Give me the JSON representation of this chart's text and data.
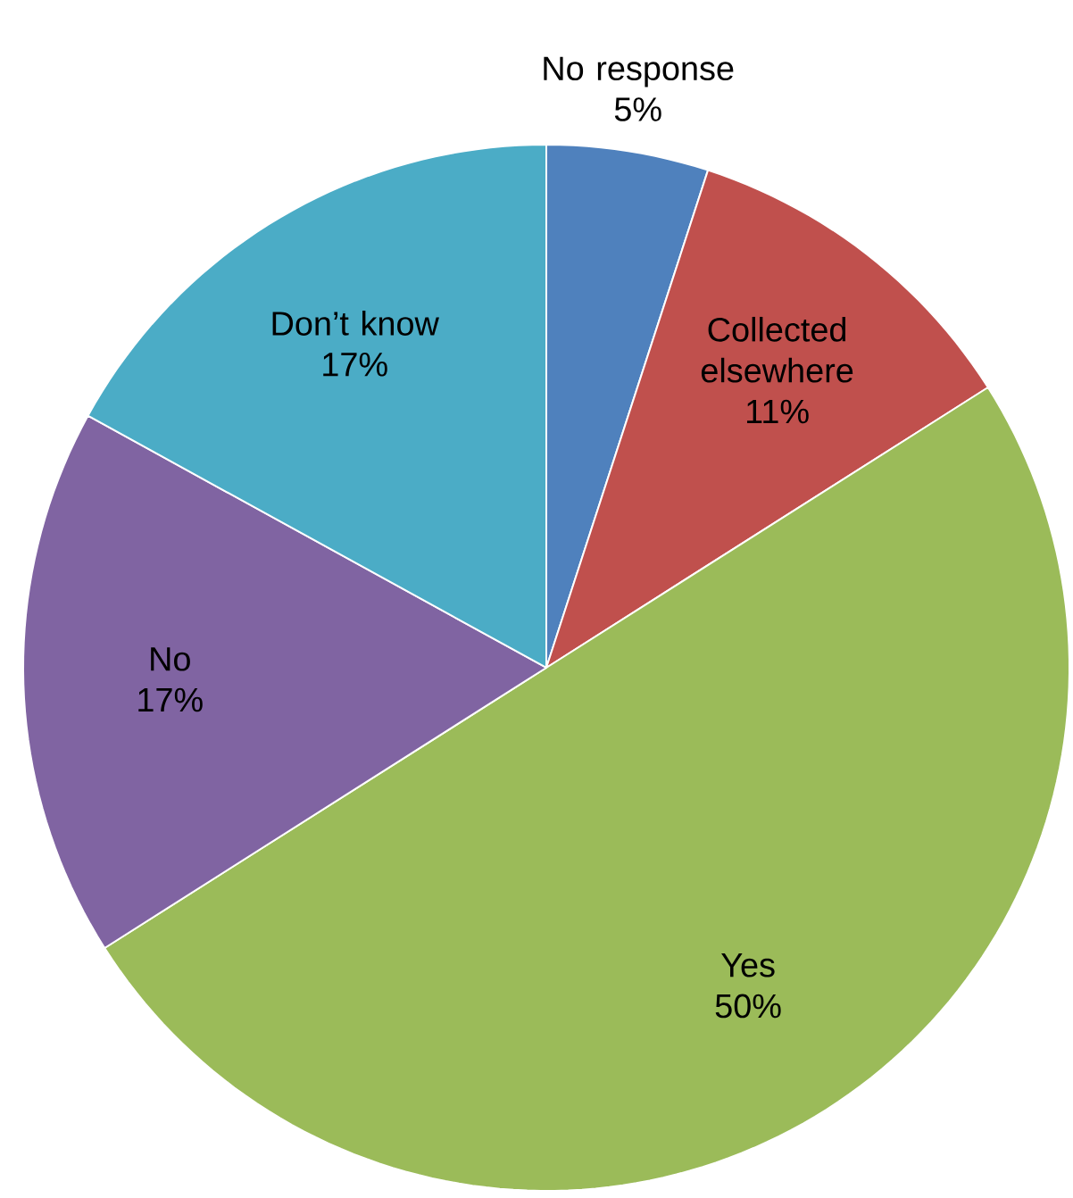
{
  "chart_data": {
    "type": "pie",
    "categories": [
      "No response",
      "Collected elsewhere",
      "Yes",
      "No",
      "Don’t know"
    ],
    "values": [
      5,
      11,
      50,
      17,
      17
    ],
    "value_labels": [
      "5%",
      "11%",
      "50%",
      "17%",
      "17%"
    ],
    "colors": [
      "#4f81bd",
      "#c0504d",
      "#9bbb59",
      "#8064a2",
      "#4bacc6"
    ]
  }
}
